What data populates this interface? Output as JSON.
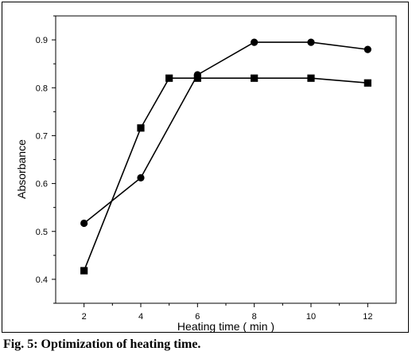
{
  "caption": "Fig. 5: Optimization of heating time.",
  "chart_data": {
    "type": "line",
    "xlabel": "Heating time ( min )",
    "ylabel": "Absorbance",
    "xlim": [
      1,
      13
    ],
    "ylim": [
      0.35,
      0.95
    ],
    "xticks": [
      2,
      4,
      6,
      8,
      10,
      12
    ],
    "yticks": [
      0.4,
      0.5,
      0.6,
      0.7,
      0.8,
      0.9
    ],
    "grid": false,
    "legend": "none",
    "series": [
      {
        "marker": "circle",
        "color": "#000000",
        "x": [
          2,
          4,
          6,
          8,
          10,
          12
        ],
        "y": [
          0.517,
          0.612,
          0.827,
          0.895,
          0.895,
          0.88
        ]
      },
      {
        "marker": "square",
        "color": "#000000",
        "x": [
          2,
          4,
          5,
          6,
          8,
          10,
          12
        ],
        "y": [
          0.418,
          0.716,
          0.82,
          0.82,
          0.82,
          0.82,
          0.81
        ]
      }
    ]
  }
}
